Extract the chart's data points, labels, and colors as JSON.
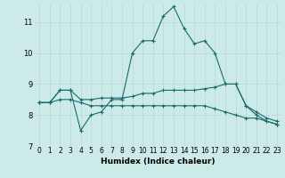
{
  "xlabel": "Humidex (Indice chaleur)",
  "bg_color": "#cceae8",
  "grid_color": "#b8d8d6",
  "line_color": "#1a6b6b",
  "xlim": [
    -0.5,
    23.5
  ],
  "ylim": [
    7.0,
    11.6
  ],
  "yticks": [
    7,
    8,
    9,
    10,
    11
  ],
  "xticks": [
    0,
    1,
    2,
    3,
    4,
    5,
    6,
    7,
    8,
    9,
    10,
    11,
    12,
    13,
    14,
    15,
    16,
    17,
    18,
    19,
    20,
    21,
    22,
    23
  ],
  "series": [
    [
      8.4,
      8.4,
      8.8,
      8.8,
      7.5,
      8.0,
      8.1,
      8.5,
      8.5,
      10.0,
      10.4,
      10.4,
      11.2,
      11.5,
      10.8,
      10.3,
      10.4,
      10.0,
      9.0,
      9.0,
      8.3,
      8.0,
      7.8,
      7.7
    ],
    [
      8.4,
      8.4,
      8.8,
      8.8,
      8.5,
      8.5,
      8.55,
      8.55,
      8.55,
      8.6,
      8.7,
      8.7,
      8.8,
      8.8,
      8.8,
      8.8,
      8.85,
      8.9,
      9.0,
      9.0,
      8.3,
      8.1,
      7.9,
      7.8
    ],
    [
      8.4,
      8.4,
      8.5,
      8.5,
      8.4,
      8.3,
      8.3,
      8.3,
      8.3,
      8.3,
      8.3,
      8.3,
      8.3,
      8.3,
      8.3,
      8.3,
      8.3,
      8.2,
      8.1,
      8.0,
      7.9,
      7.9,
      7.8,
      7.7
    ]
  ]
}
